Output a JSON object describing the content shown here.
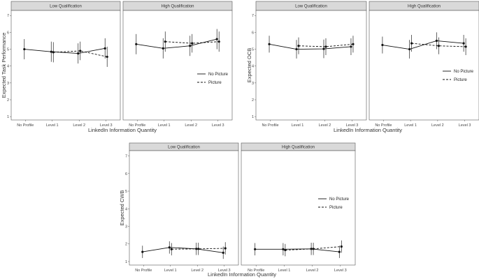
{
  "figure": {
    "x_axis_title": "LinkedIn Information Quantity",
    "legend": [
      {
        "label": "No Picture",
        "dash": "solid"
      },
      {
        "label": "Picture",
        "dash": "dashed"
      }
    ]
  },
  "chart_data": [
    {
      "type": "line",
      "ylabel": "Expected Task Performance",
      "xlabel": "LinkedIn Information Quantity",
      "ylim": [
        0.8,
        7.3
      ],
      "yticks": [
        1,
        2,
        3,
        4,
        5,
        6,
        7
      ],
      "grid": false,
      "legend_position": "right of High Qualification panel",
      "panels": [
        {
          "title": "Low Qualification",
          "categories": [
            "No Profile",
            "Level 1",
            "Level 2",
            "Level 3"
          ],
          "series": [
            {
              "name": "No Picture",
              "x": [
                "No Profile",
                "Level 1",
                "Level 2",
                "Level 3"
              ],
              "values": [
                5.0,
                4.85,
                4.75,
                5.05
              ],
              "err": [
                0.6,
                0.6,
                0.6,
                0.6
              ]
            },
            {
              "name": "Picture",
              "x": [
                "Level 1",
                "Level 2",
                "Level 3"
              ],
              "values": [
                4.82,
                4.9,
                4.55
              ],
              "err": [
                0.6,
                0.55,
                0.6
              ]
            }
          ]
        },
        {
          "title": "High Qualification",
          "categories": [
            "No Profile",
            "Level 1",
            "Level 2",
            "Level 3"
          ],
          "series": [
            {
              "name": "No Picture",
              "x": [
                "No Profile",
                "Level 1",
                "Level 2",
                "Level 3"
              ],
              "values": [
                5.3,
                5.05,
                5.2,
                5.6
              ],
              "err": [
                0.6,
                0.6,
                0.6,
                0.6
              ]
            },
            {
              "name": "Picture",
              "x": [
                "Level 1",
                "Level 2",
                "Level 3"
              ],
              "values": [
                5.45,
                5.35,
                5.45
              ],
              "err": [
                0.6,
                0.55,
                0.6
              ]
            }
          ]
        }
      ]
    },
    {
      "type": "line",
      "ylabel": "Expected OCB",
      "xlabel": "LinkedIn Information Quantity",
      "ylim": [
        0.8,
        7.3
      ],
      "yticks": [
        1,
        2,
        3,
        4,
        5,
        6,
        7
      ],
      "grid": false,
      "legend_position": "right of High Qualification panel",
      "panels": [
        {
          "title": "Low Qualification",
          "categories": [
            "No Profile",
            "Level 1",
            "Level 2",
            "Level 3"
          ],
          "series": [
            {
              "name": "No Picture",
              "x": [
                "No Profile",
                "Level 1",
                "Level 2",
                "Level 3"
              ],
              "values": [
                5.3,
                5.0,
                5.02,
                5.15
              ],
              "err": [
                0.5,
                0.55,
                0.55,
                0.5
              ]
            },
            {
              "name": "Picture",
              "x": [
                "Level 1",
                "Level 2",
                "Level 3"
              ],
              "values": [
                5.2,
                5.15,
                5.3
              ],
              "err": [
                0.5,
                0.5,
                0.5
              ]
            }
          ]
        },
        {
          "title": "High Qualification",
          "categories": [
            "No Profile",
            "Level 1",
            "Level 2",
            "Level 3"
          ],
          "series": [
            {
              "name": "No Picture",
              "x": [
                "No Profile",
                "Level 1",
                "Level 2",
                "Level 3"
              ],
              "values": [
                5.25,
                5.0,
                5.5,
                5.35
              ],
              "err": [
                0.5,
                0.55,
                0.5,
                0.5
              ]
            },
            {
              "name": "Picture",
              "x": [
                "Level 1",
                "Level 2",
                "Level 3"
              ],
              "values": [
                5.35,
                5.2,
                5.15
              ],
              "err": [
                0.5,
                0.5,
                0.5
              ]
            }
          ]
        }
      ]
    },
    {
      "type": "line",
      "ylabel": "Expected CWB",
      "xlabel": "LinkedIn Information Quantity",
      "ylim": [
        0.8,
        7.3
      ],
      "yticks": [
        1,
        2,
        3,
        4,
        5,
        6,
        7
      ],
      "grid": false,
      "legend_position": "right of High Qualification panel",
      "panels": [
        {
          "title": "Low Qualification",
          "categories": [
            "No Profile",
            "Level 1",
            "Level 2",
            "Level 3"
          ],
          "series": [
            {
              "name": "No Picture",
              "x": [
                "No Profile",
                "Level 1",
                "Level 2",
                "Level 3"
              ],
              "values": [
                1.55,
                1.8,
                1.72,
                1.5
              ],
              "err": [
                0.35,
                0.35,
                0.35,
                0.35
              ]
            },
            {
              "name": "Picture",
              "x": [
                "Level 1",
                "Level 2",
                "Level 3"
              ],
              "values": [
                1.7,
                1.72,
                1.75
              ],
              "err": [
                0.35,
                0.35,
                0.35
              ]
            }
          ]
        },
        {
          "title": "High Qualification",
          "categories": [
            "No Profile",
            "Level 1",
            "Level 2",
            "Level 3"
          ],
          "series": [
            {
              "name": "No Picture",
              "x": [
                "No Profile",
                "Level 1",
                "Level 2",
                "Level 3"
              ],
              "values": [
                1.7,
                1.7,
                1.72,
                1.55
              ],
              "err": [
                0.35,
                0.35,
                0.35,
                0.35
              ]
            },
            {
              "name": "Picture",
              "x": [
                "Level 1",
                "Level 2",
                "Level 3"
              ],
              "values": [
                1.65,
                1.72,
                1.85
              ],
              "err": [
                0.35,
                0.35,
                0.35
              ]
            }
          ]
        }
      ]
    }
  ]
}
